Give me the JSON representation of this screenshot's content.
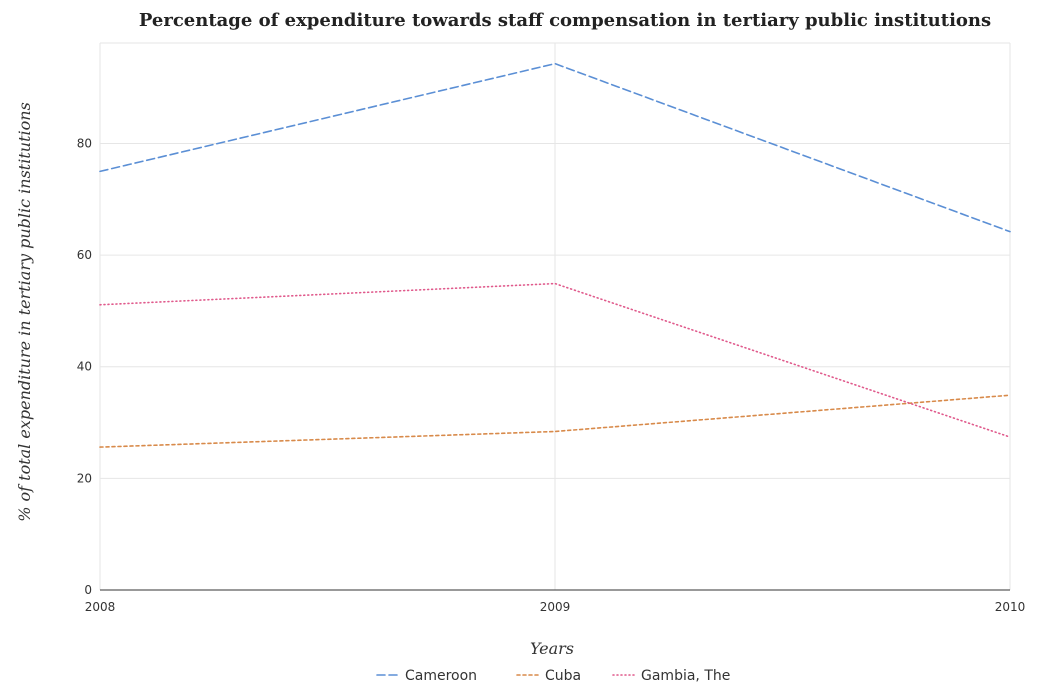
{
  "chart_data": {
    "type": "line",
    "title": "Percentage of expenditure towards staff compensation in tertiary public institutions",
    "xlabel": "Years",
    "ylabel": "% of total expenditure in tertiary public institutions",
    "categories": [
      "2008",
      "2009",
      "2010"
    ],
    "ylim": [
      0,
      98
    ],
    "yticks": [
      0,
      20,
      40,
      60,
      80
    ],
    "grid": true,
    "legend_position": "bottom",
    "series": [
      {
        "name": "Cameroon",
        "color": "#5b8fd5",
        "dash": "8,4",
        "values": [
          75.0,
          94.3,
          64.2
        ]
      },
      {
        "name": "Cuba",
        "color": "#d88a4a",
        "dash": "3,3",
        "values": [
          25.6,
          28.4,
          34.9
        ]
      },
      {
        "name": "Gambia, The",
        "color": "#e05a8c",
        "dash": "1,3",
        "values": [
          51.1,
          54.9,
          27.4
        ]
      }
    ]
  }
}
